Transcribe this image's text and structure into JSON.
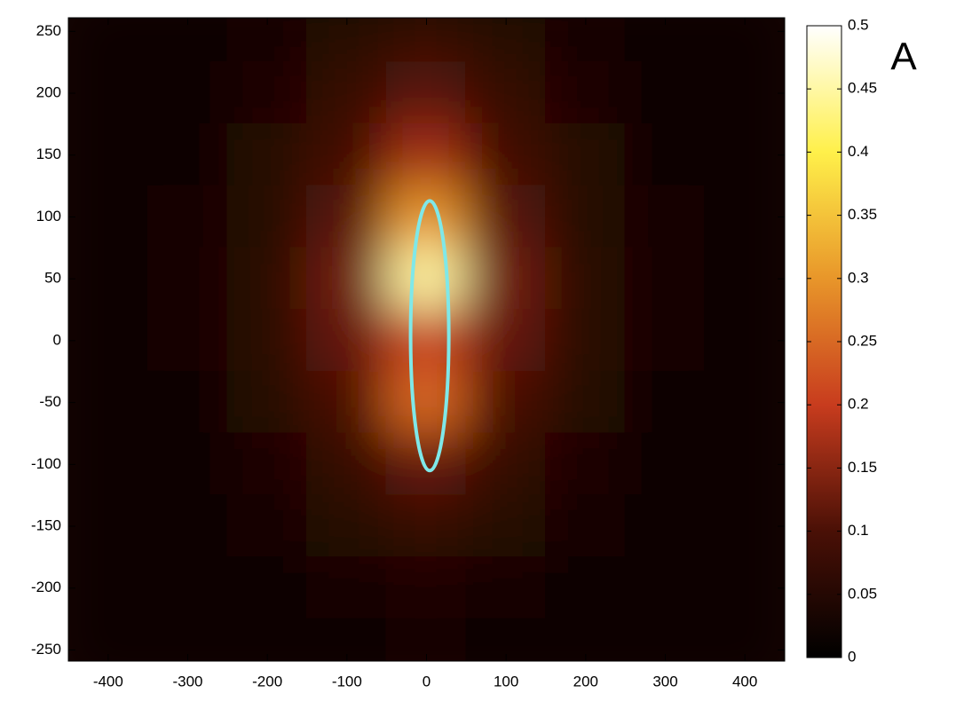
{
  "chart_data": {
    "type": "heatmap",
    "panel_label": "A",
    "x": [
      -400,
      -300,
      -200,
      -100,
      0,
      100,
      200,
      300,
      400
    ],
    "y": [
      250,
      200,
      150,
      100,
      50,
      0,
      -50,
      -100,
      -150,
      -200,
      -250
    ],
    "values": [
      [
        0.01,
        0.02,
        0.03,
        0.05,
        0.07,
        0.05,
        0.03,
        0.02,
        0.01
      ],
      [
        0.01,
        0.02,
        0.04,
        0.07,
        0.11,
        0.07,
        0.04,
        0.02,
        0.01
      ],
      [
        0.01,
        0.02,
        0.05,
        0.09,
        0.17,
        0.09,
        0.05,
        0.02,
        0.01
      ],
      [
        0.01,
        0.03,
        0.05,
        0.11,
        0.3,
        0.11,
        0.05,
        0.03,
        0.01
      ],
      [
        0.01,
        0.03,
        0.06,
        0.13,
        0.45,
        0.13,
        0.06,
        0.03,
        0.01
      ],
      [
        0.01,
        0.03,
        0.06,
        0.12,
        0.2,
        0.12,
        0.06,
        0.03,
        0.01
      ],
      [
        0.01,
        0.02,
        0.05,
        0.1,
        0.25,
        0.1,
        0.05,
        0.02,
        0.01
      ],
      [
        0.01,
        0.02,
        0.04,
        0.07,
        0.12,
        0.07,
        0.04,
        0.02,
        0.01
      ],
      [
        0.01,
        0.02,
        0.03,
        0.05,
        0.07,
        0.05,
        0.03,
        0.02,
        0.01
      ],
      [
        0.01,
        0.01,
        0.02,
        0.03,
        0.04,
        0.03,
        0.02,
        0.01,
        0.01
      ],
      [
        0.01,
        0.01,
        0.01,
        0.02,
        0.03,
        0.02,
        0.01,
        0.01,
        0.01
      ]
    ],
    "xlim": [
      -450,
      450
    ],
    "ylim": [
      -259,
      261
    ],
    "xticks": [
      -400,
      -300,
      -200,
      -100,
      0,
      100,
      200,
      300,
      400
    ],
    "yticks": [
      -250,
      -200,
      -150,
      -100,
      -50,
      0,
      50,
      100,
      150,
      200,
      250
    ],
    "clim": [
      0,
      0.5
    ],
    "cticks": [
      0,
      0.05,
      0.1,
      0.15,
      0.2,
      0.25,
      0.3,
      0.35,
      0.4,
      0.45,
      0.5
    ],
    "colormap": [
      "#000000",
      "#4a1006",
      "#c83c1e",
      "#e8962a",
      "#fff04a",
      "#ffffff"
    ],
    "ellipse": {
      "cx": 4,
      "cy": 4,
      "rx": 24,
      "ry": 109,
      "color": "#7fe8e8"
    }
  }
}
